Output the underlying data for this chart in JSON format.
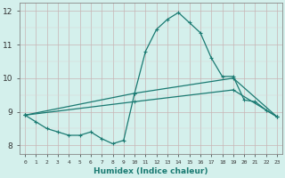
{
  "x_values": [
    0,
    1,
    2,
    3,
    4,
    5,
    6,
    7,
    8,
    9,
    10,
    11,
    12,
    13,
    14,
    15,
    16,
    17,
    18,
    19,
    20,
    21,
    22,
    23
  ],
  "line1": [
    8.9,
    8.7,
    8.5,
    8.4,
    8.3,
    8.3,
    8.4,
    8.2,
    8.05,
    8.15,
    9.55,
    10.8,
    11.45,
    11.75,
    11.95,
    11.65,
    11.35,
    10.6,
    10.05,
    10.05,
    9.35,
    9.3,
    9.05,
    8.85
  ],
  "line2_x": [
    0,
    10,
    19,
    23
  ],
  "line2_y": [
    8.9,
    9.55,
    10.0,
    8.85
  ],
  "line3_x": [
    0,
    10,
    19,
    23
  ],
  "line3_y": [
    8.9,
    9.3,
    9.65,
    8.85
  ],
  "line_color": "#1a7a72",
  "bg_color": "#d4f0ec",
  "grid_major_color": "#c8b4b4",
  "grid_minor_color": "#ddd0d0",
  "xlabel": "Humidex (Indice chaleur)",
  "yticks": [
    8,
    9,
    10,
    11,
    12
  ],
  "xticks": [
    0,
    1,
    2,
    3,
    4,
    5,
    6,
    7,
    8,
    9,
    10,
    11,
    12,
    13,
    14,
    15,
    16,
    17,
    18,
    19,
    20,
    21,
    22,
    23
  ],
  "ylim": [
    7.75,
    12.25
  ],
  "xlim": [
    -0.5,
    23.5
  ]
}
